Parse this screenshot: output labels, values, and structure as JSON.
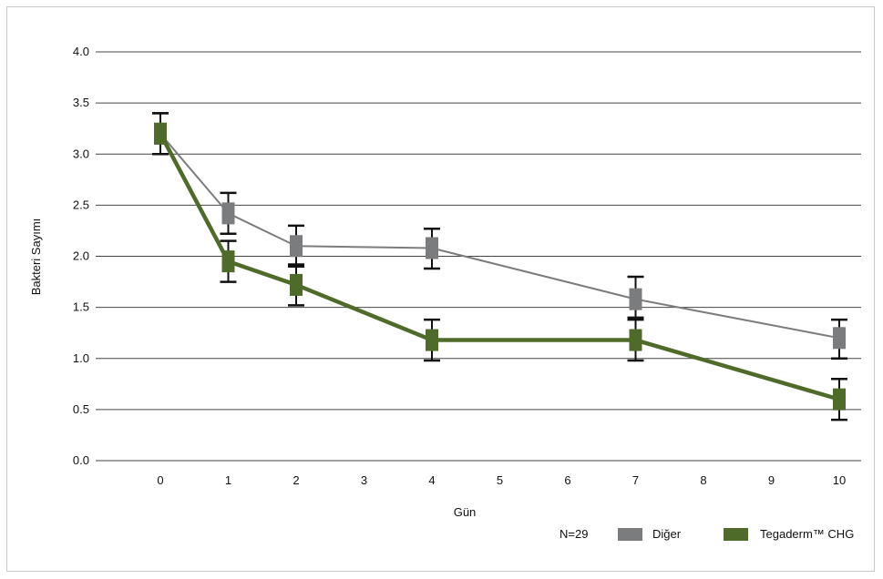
{
  "chart_data": {
    "type": "line",
    "title": "",
    "xlabel": "Gün",
    "ylabel": "Bakteri Sayımı",
    "categories": [
      "0",
      "1",
      "2",
      "3",
      "4",
      "5",
      "6",
      "7",
      "8",
      "9",
      "10"
    ],
    "y_ticks": [
      "0.0",
      "0.5",
      "1.0",
      "1.5",
      "2.0",
      "2.5",
      "3.0",
      "3.5",
      "4.0"
    ],
    "ylim": [
      0,
      4
    ],
    "grid": true,
    "note": "N=29",
    "legend_position": "bottom-right",
    "series": [
      {
        "name": "Diğer",
        "color": "#7b7c7e",
        "points": [
          {
            "x": "0",
            "y": 3.2,
            "err_low": 3.0,
            "err_high": 3.4
          },
          {
            "x": "1",
            "y": 2.42,
            "err_low": 2.22,
            "err_high": 2.62
          },
          {
            "x": "2",
            "y": 2.1,
            "err_low": 1.9,
            "err_high": 2.3
          },
          {
            "x": "4",
            "y": 2.08,
            "err_low": 1.88,
            "err_high": 2.27
          },
          {
            "x": "7",
            "y": 1.58,
            "err_low": 1.38,
            "err_high": 1.8
          },
          {
            "x": "10",
            "y": 1.2,
            "err_low": 1.0,
            "err_high": 1.38
          }
        ]
      },
      {
        "name": "Tegaderm™ CHG",
        "color": "#4f6b2a",
        "points": [
          {
            "x": "0",
            "y": 3.2,
            "err_low": 3.0,
            "err_high": 3.4
          },
          {
            "x": "1",
            "y": 1.95,
            "err_low": 1.75,
            "err_high": 2.15
          },
          {
            "x": "2",
            "y": 1.72,
            "err_low": 1.52,
            "err_high": 1.92
          },
          {
            "x": "4",
            "y": 1.18,
            "err_low": 0.98,
            "err_high": 1.38
          },
          {
            "x": "7",
            "y": 1.18,
            "err_low": 0.98,
            "err_high": 1.4
          },
          {
            "x": "10",
            "y": 0.6,
            "err_low": 0.4,
            "err_high": 0.8
          }
        ]
      }
    ]
  }
}
